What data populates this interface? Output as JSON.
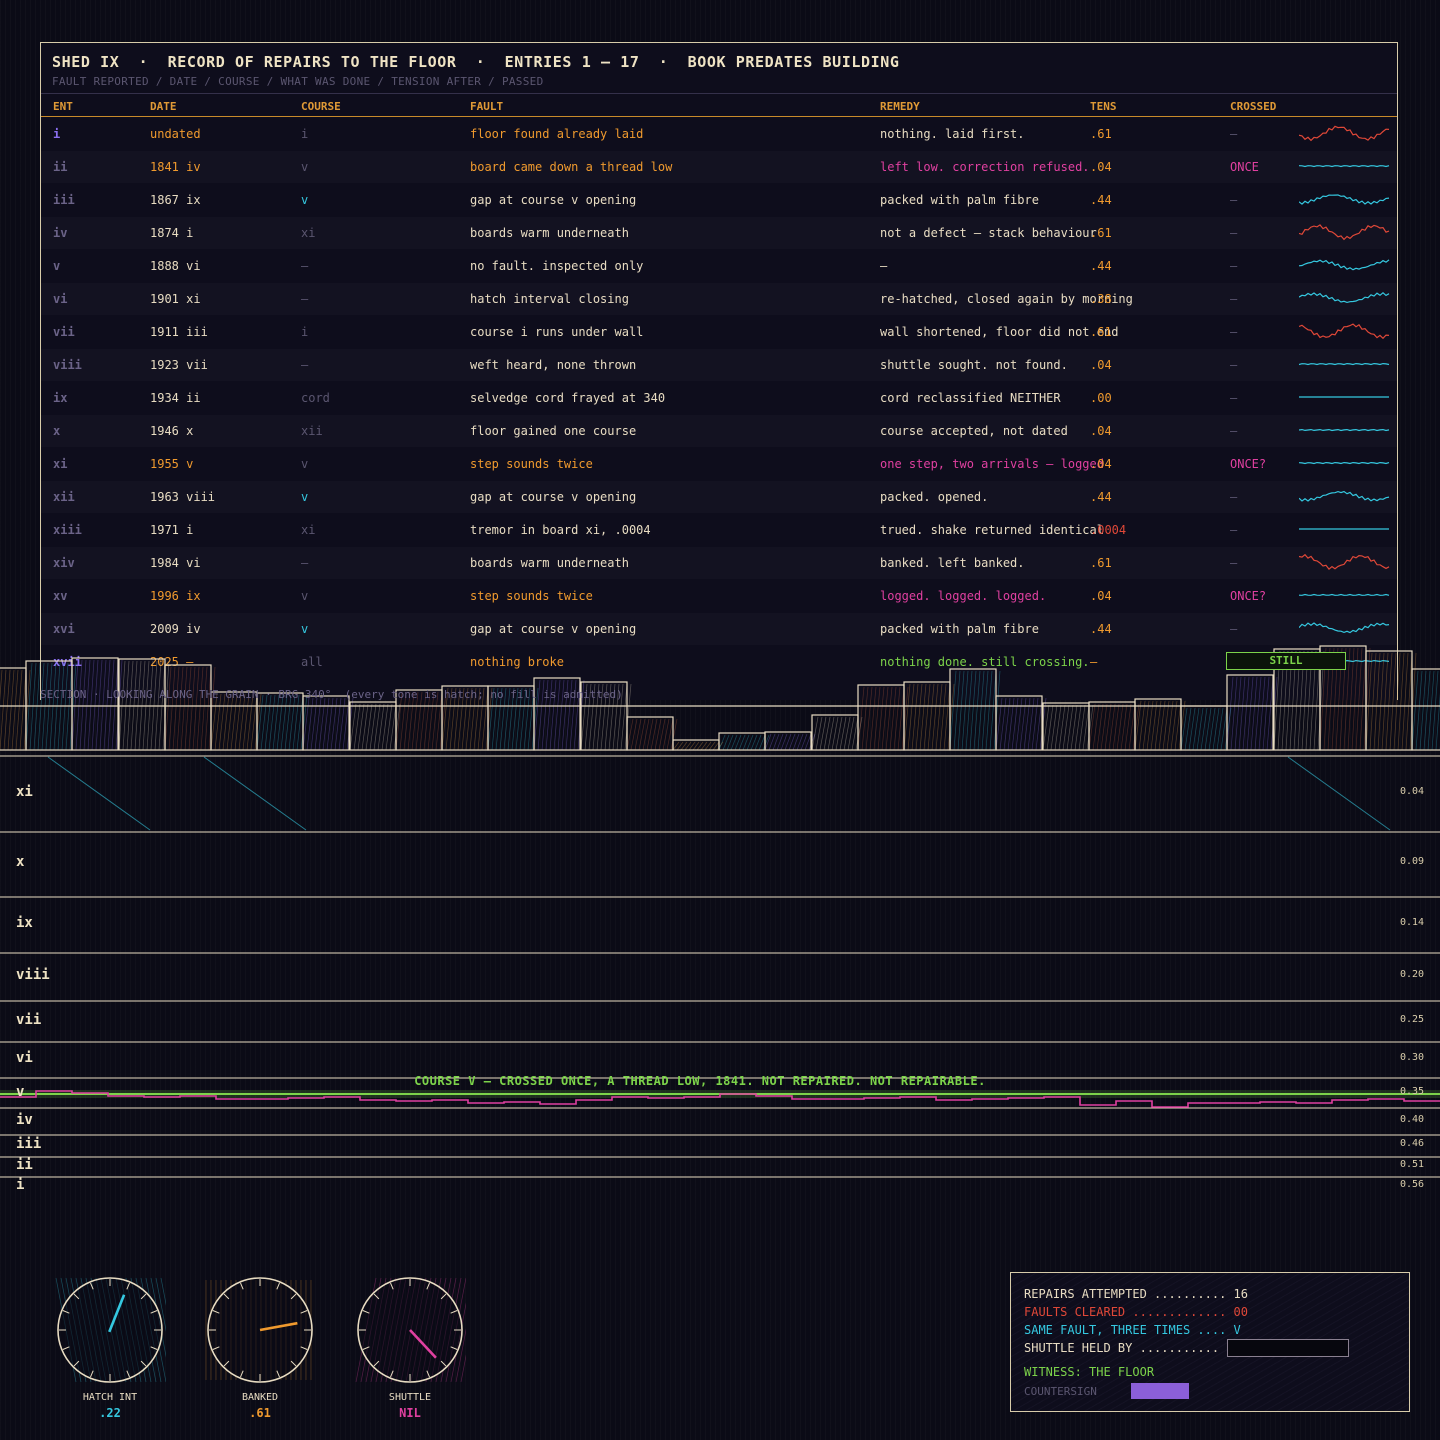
{
  "ledger": {
    "title": "SHED IX  ·  RECORD OF REPAIRS TO THE FLOOR  ·  ENTRIES 1 — 17  ·  BOOK PREDATES BUILDING",
    "subtitle": "FAULT REPORTED / DATE / COURSE / WHAT WAS DONE / TENSION AFTER / PASSED",
    "columns": [
      "ENT",
      "DATE",
      "COURSE",
      "FAULT",
      "REMEDY",
      "TENS",
      "CROSSED"
    ],
    "rows": [
      {
        "ent": "i",
        "date": "undated",
        "course": "i",
        "fault": "floor found already laid",
        "remedy": "nothing. laid first.",
        "tens": ".61",
        "crossed": "—",
        "spark": "red"
      },
      {
        "ent": "ii",
        "date": "1841 iv",
        "course": "v",
        "fault": "board came down a thread low",
        "remedy": "left low. correction refused.",
        "tens": ".04",
        "crossed": "ONCE",
        "spark": "cyan-flat"
      },
      {
        "ent": "iii",
        "date": "1867 ix",
        "course": "v",
        "fault": "gap at course v opening",
        "remedy": "packed with palm fibre",
        "tens": ".44",
        "crossed": "—",
        "spark": "cyan"
      },
      {
        "ent": "iv",
        "date": "1874 i",
        "course": "xi",
        "fault": "boards warm underneath",
        "remedy": "not a defect — stack behaviour",
        "tens": ".61",
        "crossed": "—",
        "spark": "red"
      },
      {
        "ent": "v",
        "date": "1888 vi",
        "course": "—",
        "fault": "no fault. inspected only",
        "remedy": "—",
        "tens": ".44",
        "crossed": "—",
        "spark": "cyan"
      },
      {
        "ent": "vi",
        "date": "1901 xi",
        "course": "—",
        "fault": "hatch interval closing",
        "remedy": "re-hatched, closed again by morning",
        "tens": ".38",
        "crossed": "—",
        "spark": "cyan"
      },
      {
        "ent": "vii",
        "date": "1911 iii",
        "course": "i",
        "fault": "course i runs under wall",
        "remedy": "wall shortened, floor did not end",
        "tens": ".61",
        "crossed": "—",
        "spark": "red"
      },
      {
        "ent": "viii",
        "date": "1923 vii",
        "course": "—",
        "fault": "weft heard, none thrown",
        "remedy": "shuttle sought. not found.",
        "tens": ".04",
        "crossed": "—",
        "spark": "cyan-flat"
      },
      {
        "ent": "ix",
        "date": "1934 ii",
        "course": "cord",
        "fault": "selvedge cord frayed at 340",
        "remedy": "cord reclassified NEITHER",
        "tens": ".00",
        "crossed": "—",
        "spark": "cyan-line"
      },
      {
        "ent": "x",
        "date": "1946 x",
        "course": "xii",
        "fault": "floor gained one course",
        "remedy": "course accepted, not dated",
        "tens": ".04",
        "crossed": "—",
        "spark": "cyan-flat"
      },
      {
        "ent": "xi",
        "date": "1955 v",
        "course": "v",
        "fault": "step sounds twice",
        "remedy": "one step, two arrivals — logged",
        "tens": ".04",
        "crossed": "ONCE?",
        "spark": "cyan-flat"
      },
      {
        "ent": "xii",
        "date": "1963 viii",
        "course": "v",
        "fault": "gap at course v opening",
        "remedy": "packed. opened.",
        "tens": ".44",
        "crossed": "—",
        "spark": "cyan"
      },
      {
        "ent": "xiii",
        "date": "1971 i",
        "course": "xi",
        "fault": "tremor in board xi, .0004",
        "remedy": "trued. shake returned identical",
        "tens": ".0004",
        "crossed": "—",
        "spark": "cyan-line"
      },
      {
        "ent": "xiv",
        "date": "1984 vi",
        "course": "—",
        "fault": "boards warm underneath",
        "remedy": "banked. left banked.",
        "tens": ".61",
        "crossed": "—",
        "spark": "red"
      },
      {
        "ent": "xv",
        "date": "1996 ix",
        "course": "v",
        "fault": "step sounds twice",
        "remedy": "logged. logged. logged.",
        "tens": ".04",
        "crossed": "ONCE?",
        "spark": "cyan-flat"
      },
      {
        "ent": "xvi",
        "date": "2009 iv",
        "course": "v",
        "fault": "gap at course v opening",
        "remedy": "packed with palm fibre",
        "tens": ".44",
        "crossed": "—",
        "spark": "cyan"
      },
      {
        "ent": "xvii",
        "date": "2025 —",
        "course": "all",
        "fault": "nothing broke",
        "remedy": "nothing done. still crossing.",
        "tens": "—",
        "crossed": "STILL",
        "spark": "cyan-flat"
      }
    ]
  },
  "section_caption": "SECTION · LOOKING ALONG THE GRAIN · BRG 340°  (every tone is hatch; no fill is admitted)",
  "skyline_heights": [
    0.58,
    0.63,
    0.65,
    0.64,
    0.6,
    0.41,
    0.4,
    0.38,
    0.34,
    0.42,
    0.45,
    0.45,
    0.51,
    0.48,
    0.23,
    0.07,
    0.12,
    0.13,
    0.25,
    0.46,
    0.48,
    0.57,
    0.38,
    0.33,
    0.34,
    0.36,
    0.31,
    0.53,
    0.71,
    0.73,
    0.7,
    0.57
  ],
  "strata": [
    {
      "label": "xi",
      "value": "0.04"
    },
    {
      "label": "x",
      "value": "0.09"
    },
    {
      "label": "ix",
      "value": "0.14"
    },
    {
      "label": "viii",
      "value": "0.20"
    },
    {
      "label": "vii",
      "value": "0.25"
    },
    {
      "label": "vi",
      "value": "0.30"
    },
    {
      "label": "v",
      "value": "0.35"
    },
    {
      "label": "iv",
      "value": "0.40"
    },
    {
      "label": "iii",
      "value": "0.46"
    },
    {
      "label": "ii",
      "value": "0.51"
    },
    {
      "label": "i",
      "value": "0.56"
    }
  ],
  "course_v_caption": "COURSE V — CROSSED ONCE, A THREAD LOW, 1841. NOT REPAIRED. NOT REPAIRABLE.",
  "gauges": [
    {
      "label": "HATCH INT",
      "value": ".22",
      "level": 0.22,
      "color": "#35c8e0",
      "hatch": "#35c8e0"
    },
    {
      "label": "BANKED",
      "value": ".61",
      "level": 0.61,
      "color": "#f09a2e",
      "hatch": "#f09a2e"
    },
    {
      "label": "SHUTTLE",
      "value": "NIL",
      "level": 0.9,
      "color": "#e040a0",
      "hatch": "#e040a0"
    }
  ],
  "summary": {
    "repairs": "REPAIRS ATTEMPTED .......... 16",
    "cleared": "FAULTS CLEARED ............. 00",
    "same": "SAME FAULT, THREE TIMES .... V",
    "shuttle": "SHUTTLE HELD BY ...........",
    "witness": "WITNESS: THE FLOOR",
    "countersign": "COUNTERSIGN"
  },
  "colors": {
    "accent": "#f09a2e",
    "cyan": "#35c8e0",
    "magenta": "#e040a0",
    "green": "#7cd34a",
    "red": "#e04838",
    "violet": "#8b6ff0",
    "ink": "#e8dcc2"
  }
}
